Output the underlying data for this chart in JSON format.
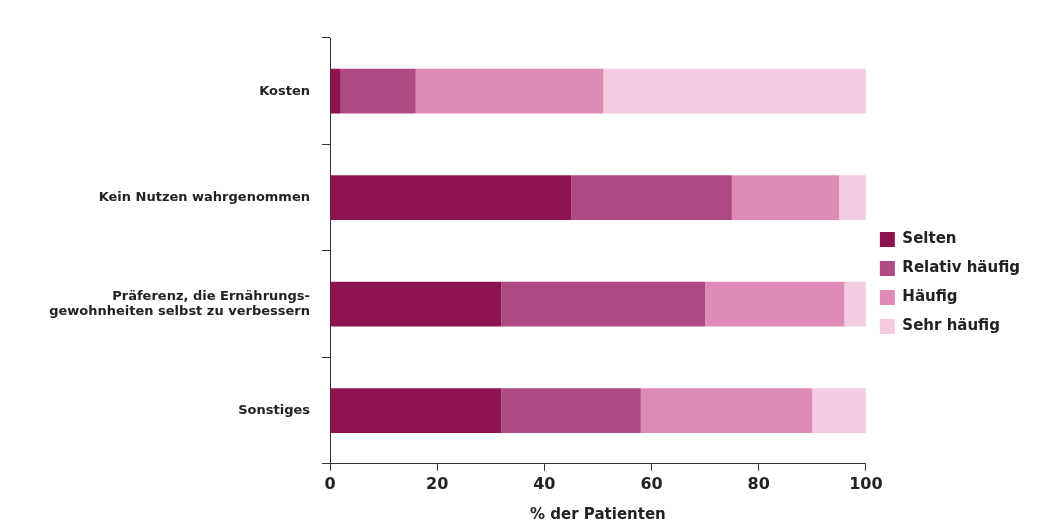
{
  "chart_data": {
    "type": "bar",
    "orientation": "horizontal",
    "stacked": true,
    "xlabel": "% der Patienten",
    "categories": [
      "Kosten",
      "Kein Nutzen wahrgenommen",
      "Präferenz, die Ernährungs-\ngewohnheiten selbst zu verbessern",
      "Sonstiges"
    ],
    "series": [
      {
        "name": "Selten",
        "color": "#8e1450",
        "values": [
          2,
          45,
          32,
          32
        ]
      },
      {
        "name": "Relativ häufig",
        "color": "#b04a82",
        "values": [
          14,
          30,
          38,
          26
        ]
      },
      {
        "name": "Häufig",
        "color": "#de8bb8",
        "values": [
          35,
          20,
          26,
          32
        ]
      },
      {
        "name": "Sehr häufig",
        "color": "#f4cbe0",
        "values": [
          49,
          5,
          4,
          10
        ]
      }
    ],
    "xlim": [
      0,
      100
    ],
    "xticks": [
      0,
      20,
      40,
      60,
      80,
      100
    ],
    "grid": false,
    "legend": "right"
  }
}
